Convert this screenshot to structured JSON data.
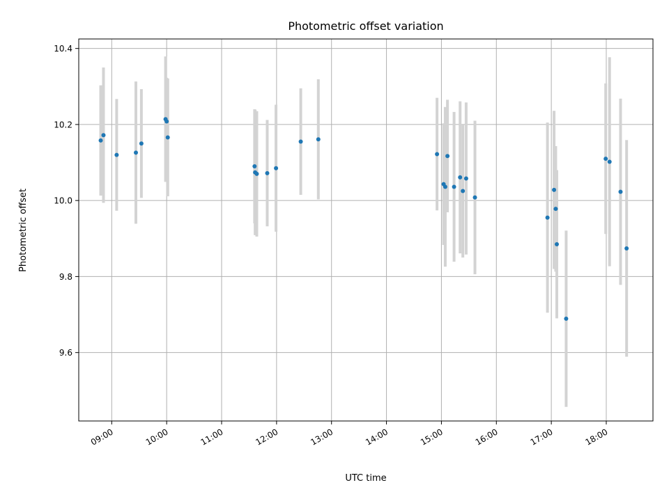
{
  "chart_data": {
    "type": "scatter",
    "title": "Photometric offset variation",
    "xlabel": "UTC time",
    "ylabel": "Photometric offset",
    "x_unit": "hours",
    "xlim": [
      8.4,
      18.85
    ],
    "ylim": [
      9.42,
      10.425
    ],
    "x_ticks": [
      9,
      10,
      11,
      12,
      13,
      14,
      15,
      16,
      17,
      18
    ],
    "x_tick_labels": [
      "09:00",
      "10:00",
      "11:00",
      "12:00",
      "13:00",
      "14:00",
      "15:00",
      "16:00",
      "17:00",
      "18:00"
    ],
    "y_ticks": [
      9.6,
      9.8,
      10.0,
      10.2,
      10.4
    ],
    "y_tick_labels": [
      "9.6",
      "9.8",
      "10.0",
      "10.2",
      "10.4"
    ],
    "grid": true,
    "marker_color": "#1f77b4",
    "errorbar_color": "#d3d3d3",
    "points": [
      {
        "x": 8.8,
        "y": 10.158,
        "err": 0.145
      },
      {
        "x": 8.85,
        "y": 10.172,
        "err": 0.178
      },
      {
        "x": 9.09,
        "y": 10.12,
        "err": 0.147
      },
      {
        "x": 9.44,
        "y": 10.126,
        "err": 0.187
      },
      {
        "x": 9.54,
        "y": 10.15,
        "err": 0.143
      },
      {
        "x": 9.98,
        "y": 10.214,
        "err": 0.165
      },
      {
        "x": 10.0,
        "y": 10.208,
        "err": 0.115
      },
      {
        "x": 10.02,
        "y": 10.166,
        "err": 0.155
      },
      {
        "x": 11.6,
        "y": 10.09,
        "err": 0.15
      },
      {
        "x": 11.61,
        "y": 10.074,
        "err": 0.165
      },
      {
        "x": 11.64,
        "y": 10.07,
        "err": 0.165
      },
      {
        "x": 11.83,
        "y": 10.072,
        "err": 0.14
      },
      {
        "x": 11.99,
        "y": 10.085,
        "err": 0.167
      },
      {
        "x": 12.44,
        "y": 10.155,
        "err": 0.14
      },
      {
        "x": 12.76,
        "y": 10.161,
        "err": 0.158
      },
      {
        "x": 14.92,
        "y": 10.122,
        "err": 0.148
      },
      {
        "x": 15.04,
        "y": 10.043,
        "err": 0.16
      },
      {
        "x": 15.07,
        "y": 10.036,
        "err": 0.21
      },
      {
        "x": 15.11,
        "y": 10.117,
        "err": 0.148
      },
      {
        "x": 15.23,
        "y": 10.036,
        "err": 0.197
      },
      {
        "x": 15.34,
        "y": 10.061,
        "err": 0.2
      },
      {
        "x": 15.39,
        "y": 10.025,
        "err": 0.175
      },
      {
        "x": 15.45,
        "y": 10.058,
        "err": 0.2
      },
      {
        "x": 15.61,
        "y": 10.008,
        "err": 0.202
      },
      {
        "x": 16.93,
        "y": 9.955,
        "err": 0.25
      },
      {
        "x": 17.05,
        "y": 10.028,
        "err": 0.208
      },
      {
        "x": 17.08,
        "y": 9.978,
        "err": 0.165
      },
      {
        "x": 17.1,
        "y": 9.885,
        "err": 0.195
      },
      {
        "x": 17.27,
        "y": 9.689,
        "err": 0.232
      },
      {
        "x": 17.99,
        "y": 10.11,
        "err": 0.198
      },
      {
        "x": 18.06,
        "y": 10.102,
        "err": 0.275
      },
      {
        "x": 18.26,
        "y": 10.023,
        "err": 0.245
      },
      {
        "x": 18.37,
        "y": 9.874,
        "err": 0.285
      }
    ]
  }
}
